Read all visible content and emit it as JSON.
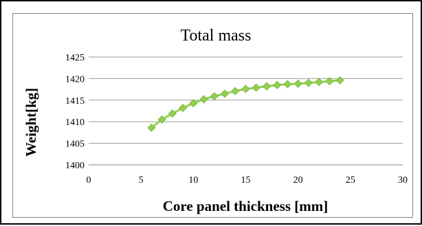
{
  "chart_data": {
    "type": "line",
    "title": "Total mass",
    "xlabel": "Core panel thickness [mm]",
    "ylabel": "Weight[kg]",
    "xlim": [
      0,
      30
    ],
    "ylim": [
      1400,
      1425
    ],
    "xticks": [
      "0",
      "5",
      "10",
      "15",
      "20",
      "25",
      "30"
    ],
    "yticks": [
      "1400",
      "1405",
      "1410",
      "1415",
      "1420",
      "1425"
    ],
    "grid": "horizontal",
    "legend": "none",
    "series": [
      {
        "color": "#92d050",
        "marker": "diamond",
        "x": [
          6,
          7,
          8,
          9,
          10,
          11,
          12,
          13,
          14,
          15,
          16,
          17,
          18,
          19,
          20,
          21,
          22,
          23,
          24
        ],
        "y": [
          1408.6,
          1410.5,
          1411.9,
          1413.2,
          1414.3,
          1415.2,
          1415.9,
          1416.5,
          1417.1,
          1417.6,
          1417.9,
          1418.2,
          1418.5,
          1418.7,
          1418.8,
          1419.0,
          1419.2,
          1419.4,
          1419.6
        ]
      }
    ]
  }
}
